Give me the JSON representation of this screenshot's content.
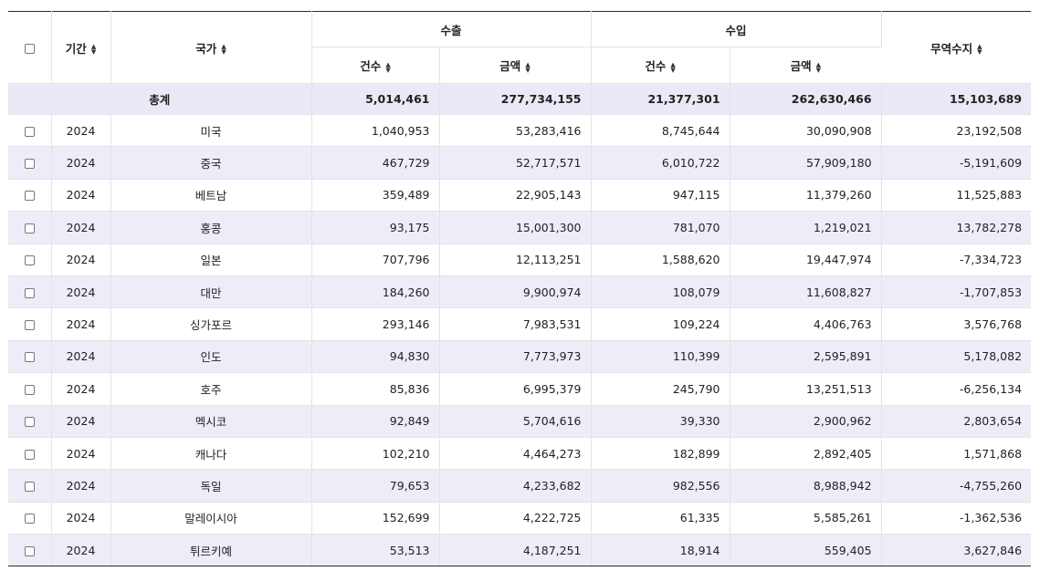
{
  "headers": {
    "period": "기간",
    "country": "국가",
    "export": "수출",
    "import": "수입",
    "count": "건수",
    "amount": "금액",
    "balance": "무역수지",
    "sort_up": "▲",
    "sort_down": "▼"
  },
  "total": {
    "label": "총계",
    "export_count": "5,014,461",
    "export_amount": "277,734,155",
    "import_count": "21,377,301",
    "import_amount": "262,630,466",
    "balance": "15,103,689"
  },
  "rows": [
    {
      "period": "2024",
      "country": "미국",
      "export_count": "1,040,953",
      "export_amount": "53,283,416",
      "import_count": "8,745,644",
      "import_amount": "30,090,908",
      "balance": "23,192,508"
    },
    {
      "period": "2024",
      "country": "중국",
      "export_count": "467,729",
      "export_amount": "52,717,571",
      "import_count": "6,010,722",
      "import_amount": "57,909,180",
      "balance": "-5,191,609"
    },
    {
      "period": "2024",
      "country": "베트남",
      "export_count": "359,489",
      "export_amount": "22,905,143",
      "import_count": "947,115",
      "import_amount": "11,379,260",
      "balance": "11,525,883"
    },
    {
      "period": "2024",
      "country": "홍콩",
      "export_count": "93,175",
      "export_amount": "15,001,300",
      "import_count": "781,070",
      "import_amount": "1,219,021",
      "balance": "13,782,278"
    },
    {
      "period": "2024",
      "country": "일본",
      "export_count": "707,796",
      "export_amount": "12,113,251",
      "import_count": "1,588,620",
      "import_amount": "19,447,974",
      "balance": "-7,334,723"
    },
    {
      "period": "2024",
      "country": "대만",
      "export_count": "184,260",
      "export_amount": "9,900,974",
      "import_count": "108,079",
      "import_amount": "11,608,827",
      "balance": "-1,707,853"
    },
    {
      "period": "2024",
      "country": "싱가포르",
      "export_count": "293,146",
      "export_amount": "7,983,531",
      "import_count": "109,224",
      "import_amount": "4,406,763",
      "balance": "3,576,768"
    },
    {
      "period": "2024",
      "country": "인도",
      "export_count": "94,830",
      "export_amount": "7,773,973",
      "import_count": "110,399",
      "import_amount": "2,595,891",
      "balance": "5,178,082"
    },
    {
      "period": "2024",
      "country": "호주",
      "export_count": "85,836",
      "export_amount": "6,995,379",
      "import_count": "245,790",
      "import_amount": "13,251,513",
      "balance": "-6,256,134"
    },
    {
      "period": "2024",
      "country": "멕시코",
      "export_count": "92,849",
      "export_amount": "5,704,616",
      "import_count": "39,330",
      "import_amount": "2,900,962",
      "balance": "2,803,654"
    },
    {
      "period": "2024",
      "country": "캐나다",
      "export_count": "102,210",
      "export_amount": "4,464,273",
      "import_count": "182,899",
      "import_amount": "2,892,405",
      "balance": "1,571,868"
    },
    {
      "period": "2024",
      "country": "독일",
      "export_count": "79,653",
      "export_amount": "4,233,682",
      "import_count": "982,556",
      "import_amount": "8,988,942",
      "balance": "-4,755,260"
    },
    {
      "period": "2024",
      "country": "말레이시아",
      "export_count": "152,699",
      "export_amount": "4,222,725",
      "import_count": "61,335",
      "import_amount": "5,585,261",
      "balance": "-1,362,536"
    },
    {
      "period": "2024",
      "country": "튀르키예",
      "export_count": "53,513",
      "export_amount": "4,187,251",
      "import_count": "18,914",
      "import_amount": "559,405",
      "balance": "3,627,846"
    }
  ]
}
